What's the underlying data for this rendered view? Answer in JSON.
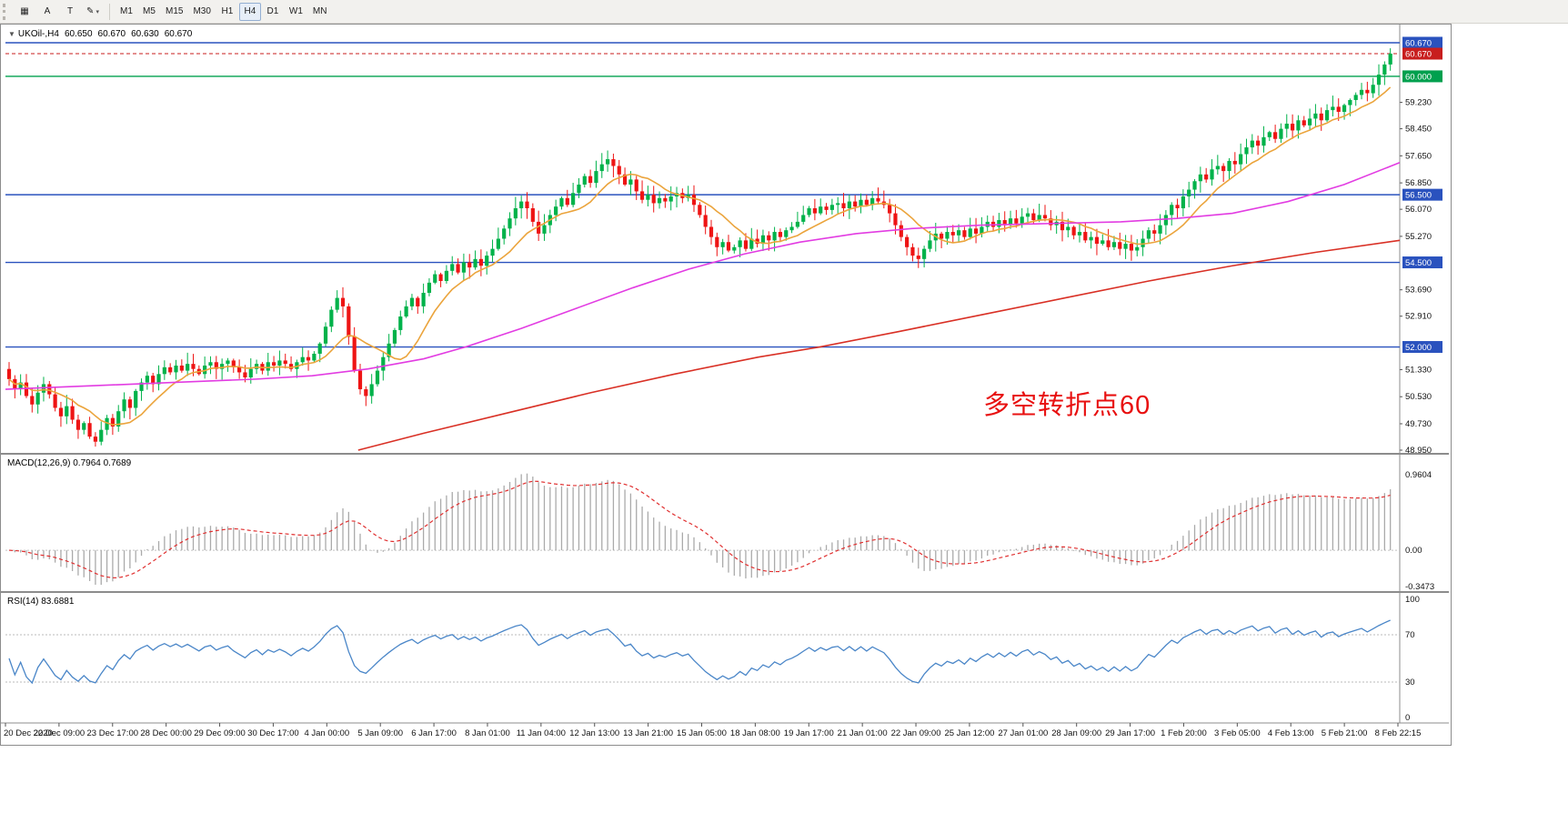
{
  "toolbar": {
    "tools": [
      {
        "name": "chart-tool",
        "glyph": "▦"
      },
      {
        "name": "text-tool",
        "glyph": "A"
      },
      {
        "name": "shape-tool",
        "glyph": "T"
      },
      {
        "name": "draw-tool",
        "glyph": "✎",
        "caret": "▾"
      }
    ],
    "timeframes": [
      "M1",
      "M5",
      "M15",
      "M30",
      "H1",
      "H4",
      "D1",
      "W1",
      "MN"
    ],
    "active_timeframe": "H4"
  },
  "chart": {
    "header": {
      "collapse_glyph": "▼",
      "symbol_period": "UKOil-,H4",
      "open": "60.650",
      "high": "60.670",
      "low": "60.630",
      "close": "60.670"
    },
    "annotation": {
      "text": "多空转折点60",
      "color": "#e81010"
    }
  },
  "chart_data": {
    "type": "candlestick",
    "symbol": "UKOil-",
    "period": "H4",
    "colors": {
      "up": "#00b24a",
      "down": "#ee1414",
      "orange_ma": "#eba43c",
      "magenta_ma": "#e23ce2",
      "red_ma": "#d93025",
      "hline_blue": "#2a52be",
      "hline_green": "#00a04e",
      "current_price": "#c81e1e",
      "macd_hist": "#aaaaaa",
      "macd_signal": "#e03030",
      "rsi_line": "#4a86c8"
    },
    "price_axis": {
      "min": 48.95,
      "max": 60.67,
      "ticks": [
        59.23,
        58.45,
        57.65,
        56.85,
        56.07,
        55.27,
        53.69,
        52.91,
        51.33,
        50.53,
        49.73,
        48.95
      ]
    },
    "levels": [
      {
        "price": 60.67,
        "label": "60.670",
        "color": "#2a52be",
        "style": "line-above"
      },
      {
        "price": 60.67,
        "label": "60.670",
        "color": "#c81e1e",
        "style": "current"
      },
      {
        "price": 60.0,
        "label": "60.000",
        "color": "#00a04e",
        "style": "solid"
      },
      {
        "price": 56.5,
        "label": "56.500",
        "color": "#2a52be",
        "style": "solid"
      },
      {
        "price": 54.5,
        "label": "54.500",
        "color": "#2a52be",
        "style": "solid"
      },
      {
        "price": 52.0,
        "label": "52.000",
        "color": "#2a52be",
        "style": "solid"
      }
    ],
    "open0": 51.35,
    "closes": [
      51.05,
      50.75,
      50.95,
      50.55,
      50.3,
      50.65,
      50.9,
      50.6,
      50.2,
      49.95,
      50.25,
      49.85,
      49.55,
      49.75,
      49.35,
      49.2,
      49.55,
      49.9,
      49.65,
      50.1,
      50.45,
      50.2,
      50.7,
      50.95,
      51.15,
      50.9,
      51.2,
      51.4,
      51.25,
      51.45,
      51.3,
      51.5,
      51.35,
      51.2,
      51.45,
      51.55,
      51.35,
      51.5,
      51.6,
      51.4,
      51.25,
      51.1,
      51.35,
      51.5,
      51.3,
      51.55,
      51.45,
      51.6,
      51.5,
      51.35,
      51.55,
      51.7,
      51.6,
      51.8,
      52.1,
      52.6,
      53.1,
      53.45,
      53.2,
      52.3,
      51.3,
      50.75,
      50.55,
      50.9,
      51.3,
      51.7,
      52.1,
      52.5,
      52.9,
      53.2,
      53.45,
      53.2,
      53.6,
      53.9,
      54.15,
      53.95,
      54.25,
      54.45,
      54.2,
      54.5,
      54.35,
      54.6,
      54.4,
      54.7,
      54.9,
      55.2,
      55.5,
      55.8,
      56.1,
      56.3,
      56.1,
      55.7,
      55.35,
      55.6,
      55.9,
      56.15,
      56.4,
      56.2,
      56.55,
      56.8,
      57.05,
      56.85,
      57.2,
      57.4,
      57.55,
      57.35,
      57.1,
      56.8,
      56.95,
      56.6,
      56.35,
      56.5,
      56.25,
      56.4,
      56.3,
      56.45,
      56.55,
      56.4,
      56.5,
      56.2,
      55.9,
      55.55,
      55.25,
      54.95,
      55.1,
      54.85,
      54.95,
      55.15,
      54.9,
      55.2,
      55.05,
      55.3,
      55.15,
      55.4,
      55.25,
      55.45,
      55.55,
      55.7,
      55.9,
      56.1,
      55.95,
      56.15,
      56.05,
      56.2,
      56.25,
      56.1,
      56.3,
      56.15,
      56.35,
      56.2,
      56.4,
      56.3,
      56.2,
      55.95,
      55.6,
      55.25,
      54.95,
      54.7,
      54.6,
      54.9,
      55.15,
      55.35,
      55.2,
      55.4,
      55.3,
      55.45,
      55.25,
      55.5,
      55.35,
      55.55,
      55.7,
      55.55,
      55.75,
      55.6,
      55.8,
      55.65,
      55.85,
      55.95,
      55.75,
      55.9,
      55.8,
      55.6,
      55.7,
      55.45,
      55.55,
      55.3,
      55.4,
      55.15,
      55.25,
      55.05,
      55.15,
      54.95,
      55.1,
      54.9,
      55.05,
      54.85,
      54.95,
      55.2,
      55.45,
      55.35,
      55.6,
      55.9,
      56.2,
      56.1,
      56.45,
      56.65,
      56.9,
      57.1,
      56.95,
      57.25,
      57.35,
      57.2,
      57.5,
      57.4,
      57.7,
      57.9,
      58.1,
      57.95,
      58.2,
      58.35,
      58.15,
      58.45,
      58.6,
      58.4,
      58.7,
      58.55,
      58.75,
      58.9,
      58.7,
      59.0,
      59.1,
      58.95,
      59.15,
      59.3,
      59.45,
      59.6,
      59.5,
      59.75,
      60.05,
      60.35,
      60.67
    ],
    "overlays": {
      "orange_sma_period": 10,
      "magenta": [
        [
          0,
          50.75
        ],
        [
          0.06,
          50.85
        ],
        [
          0.12,
          50.95
        ],
        [
          0.18,
          51.05
        ],
        [
          0.22,
          51.15
        ],
        [
          0.26,
          51.35
        ],
        [
          0.3,
          51.65
        ],
        [
          0.33,
          52.0
        ],
        [
          0.37,
          52.55
        ],
        [
          0.41,
          53.15
        ],
        [
          0.45,
          53.75
        ],
        [
          0.49,
          54.3
        ],
        [
          0.53,
          54.75
        ],
        [
          0.57,
          55.1
        ],
        [
          0.61,
          55.35
        ],
        [
          0.65,
          55.5
        ],
        [
          0.7,
          55.6
        ],
        [
          0.75,
          55.65
        ],
        [
          0.8,
          55.7
        ],
        [
          0.84,
          55.8
        ],
        [
          0.88,
          55.95
        ],
        [
          0.92,
          56.3
        ],
        [
          0.96,
          56.8
        ],
        [
          1.0,
          57.45
        ]
      ],
      "red_ma": [
        [
          0.253,
          48.95
        ],
        [
          0.3,
          49.45
        ],
        [
          0.36,
          50.05
        ],
        [
          0.42,
          50.65
        ],
        [
          0.48,
          51.2
        ],
        [
          0.54,
          51.7
        ],
        [
          0.584,
          52.0
        ],
        [
          0.64,
          52.45
        ],
        [
          0.7,
          52.95
        ],
        [
          0.76,
          53.45
        ],
        [
          0.82,
          53.95
        ],
        [
          0.88,
          54.4
        ],
        [
          0.94,
          54.8
        ],
        [
          1.0,
          55.15
        ]
      ]
    },
    "macd": {
      "label": "MACD(12,26,9) 0.7964 0.7689",
      "fast": 12,
      "slow": 26,
      "signal": 9,
      "axis": [
        "0.9604",
        "0.00",
        "-0.3473"
      ]
    },
    "rsi": {
      "label": "RSI(14) 83.6881",
      "period": 14,
      "axis": [
        100,
        70,
        30,
        0
      ],
      "levels": [
        70,
        30
      ]
    },
    "time_labels": [
      "20 Dec 2020",
      "22 Dec 09:00",
      "23 Dec 17:00",
      "28 Dec 00:00",
      "29 Dec 09:00",
      "30 Dec 17:00",
      "4 Jan 00:00",
      "5 Jan 09:00",
      "6 Jan 17:00",
      "8 Jan 01:00",
      "11 Jan 04:00",
      "12 Jan 13:00",
      "13 Jan 21:00",
      "15 Jan 05:00",
      "18 Jan 08:00",
      "19 Jan 17:00",
      "21 Jan 01:00",
      "22 Jan 09:00",
      "25 Jan 12:00",
      "27 Jan 01:00",
      "28 Jan 09:00",
      "29 Jan 17:00",
      "1 Feb 20:00",
      "3 Feb 05:00",
      "4 Feb 13:00",
      "5 Feb 21:00",
      "8 Feb 22:15"
    ]
  }
}
